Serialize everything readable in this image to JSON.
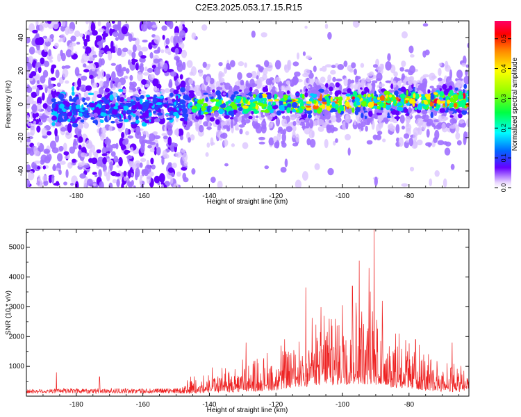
{
  "title": "C2E3.2025.053.17.15.R15",
  "colorbar": {
    "label": "Normalized spectral amplitude",
    "ticks": [
      "0.0",
      "0.1",
      "0.2",
      "0.3",
      "0.4",
      "0.5"
    ],
    "range": [
      0,
      0.56
    ],
    "colormap": [
      "#ffffff",
      "#6600ff",
      "#0066ff",
      "#00ffff",
      "#00ff44",
      "#99ff00",
      "#ffff00",
      "#ff8800",
      "#ff0000",
      "#ff0066"
    ]
  },
  "chart_data": [
    {
      "type": "heatmap",
      "xlabel": "Height of straight line (km)",
      "ylabel": "Frequency (Hz)",
      "xlim": [
        -195,
        -62
      ],
      "ylim": [
        -50,
        50
      ],
      "xticks": [
        "-180",
        "-160",
        "-140",
        "-120",
        "-100",
        "-80"
      ],
      "yticks": [
        "-40",
        "-20",
        "0",
        "20",
        "40"
      ],
      "band": {
        "center_hz": [
          -3,
          3
        ],
        "halfwidth_hz": 6
      },
      "grid": false
    },
    {
      "type": "line",
      "xlabel": "Height of straight line (km)",
      "ylabel": "SNR (10 * v/v)",
      "xlim": [
        -195,
        -62
      ],
      "ylim": [
        0,
        5600
      ],
      "xticks": [
        "-180",
        "-160",
        "-140",
        "-120",
        "-100",
        "-80"
      ],
      "yticks": [
        "1000",
        "2000",
        "3000",
        "4000",
        "5000"
      ],
      "color": "#ee2222",
      "peak": {
        "x": -90.5,
        "y": 5600
      },
      "profile": [
        {
          "x": -195,
          "y": 150
        },
        {
          "x": -185,
          "y": 180
        },
        {
          "x": -180,
          "y": 200
        },
        {
          "x": -170,
          "y": 190
        },
        {
          "x": -160,
          "y": 180
        },
        {
          "x": -150,
          "y": 200
        },
        {
          "x": -145,
          "y": 350
        },
        {
          "x": -140,
          "y": 450
        },
        {
          "x": -130,
          "y": 550
        },
        {
          "x": -120,
          "y": 750
        },
        {
          "x": -112,
          "y": 1200
        },
        {
          "x": -105,
          "y": 1400
        },
        {
          "x": -95,
          "y": 1600
        },
        {
          "x": -90,
          "y": 1500
        },
        {
          "x": -85,
          "y": 1100
        },
        {
          "x": -75,
          "y": 700
        },
        {
          "x": -62,
          "y": 500
        }
      ],
      "spikes": [
        {
          "x": -186,
          "y": 800
        },
        {
          "x": -173,
          "y": 650
        },
        {
          "x": -129,
          "y": 1800
        },
        {
          "x": -111,
          "y": 3650
        },
        {
          "x": -108,
          "y": 2400
        },
        {
          "x": -104,
          "y": 2600
        },
        {
          "x": -100,
          "y": 3050
        },
        {
          "x": -97,
          "y": 3700
        },
        {
          "x": -95,
          "y": 4550
        },
        {
          "x": -92,
          "y": 4300
        },
        {
          "x": -90.5,
          "y": 5600
        },
        {
          "x": -88,
          "y": 3200
        },
        {
          "x": -83,
          "y": 2100
        },
        {
          "x": -78,
          "y": 1900
        },
        {
          "x": -67,
          "y": 1800
        }
      ]
    }
  ]
}
